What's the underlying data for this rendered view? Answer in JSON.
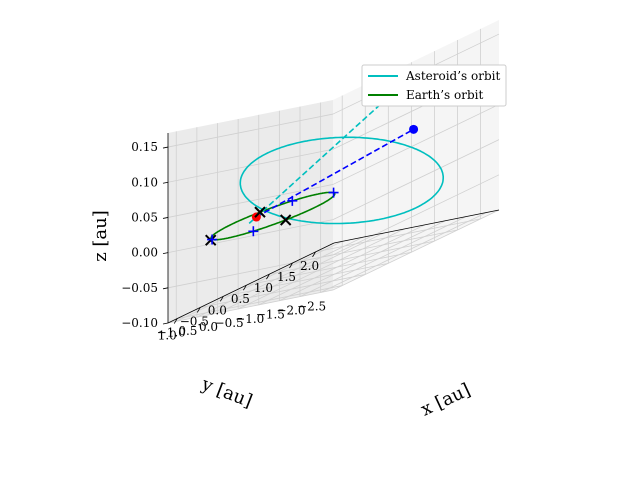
{
  "chart_data": {
    "type": "line",
    "projection": "3d",
    "title": "",
    "xlabel": "x [au]",
    "ylabel": "y [au]",
    "zlabel": "z [au]",
    "xlim": [
      -1.2,
      2.4
    ],
    "ylim": [
      -2.8,
      1.2
    ],
    "zlim": [
      -0.1,
      0.17
    ],
    "x_ticks": [
      "−1.0",
      "−0.5",
      "0.0",
      "0.5",
      "1.0",
      "1.5",
      "2.0"
    ],
    "x_tick_values": [
      -1.0,
      -0.5,
      0.0,
      0.5,
      1.0,
      1.5,
      2.0
    ],
    "y_ticks": [
      "1.0",
      "0.5",
      "0.0",
      "−0.5",
      "−1.0",
      "−1.5",
      "−2.0",
      "−2.5"
    ],
    "y_tick_values": [
      1.0,
      0.5,
      0.0,
      -0.5,
      -1.0,
      -1.5,
      -2.0,
      -2.5
    ],
    "z_ticks": [
      "0.15",
      "0.10",
      "0.05",
      "0.00",
      "−0.05",
      "−0.10"
    ],
    "z_tick_values": [
      0.15,
      0.1,
      0.05,
      0.0,
      -0.05,
      -0.1
    ],
    "grid": true,
    "legend_position": "top-right",
    "series": [
      {
        "name": "Asteroid’s orbit",
        "color": "#00bfbf",
        "style": "solid",
        "orbit": {
          "center": [
            0.6,
            -1.0,
            0.02
          ],
          "u": [
            1.5,
            0.0,
            0.0
          ],
          "v": [
            0.0,
            1.8,
            0.06
          ]
        }
      },
      {
        "name": "Earth’s orbit",
        "color": "#008000",
        "style": "solid",
        "orbit": {
          "center": [
            0.0,
            0.0,
            0.0
          ],
          "u": [
            1.0,
            0.0,
            0.0
          ],
          "v": [
            0.0,
            1.0,
            0.0
          ]
        }
      }
    ],
    "lines": [
      {
        "color": "#0000ff",
        "style": "dashed",
        "from": [
          0.18,
          0.6,
          0.0
        ],
        "to": [
          1.8,
          -1.4,
          0.05
        ]
      },
      {
        "color": "#00bfbf",
        "style": "dashed",
        "from": [
          -0.2,
          0.35,
          0.0
        ],
        "to": [
          2.1,
          -1.0,
          0.12
        ]
      }
    ],
    "markers": [
      {
        "symbol": "circle",
        "color": "#ff0000",
        "position": [
          0.18,
          0.6,
          0.0
        ]
      },
      {
        "symbol": "circle",
        "color": "#0000ff",
        "position": [
          1.8,
          -1.4,
          0.05
        ]
      },
      {
        "symbol": "x",
        "color": "#000000",
        "position": [
          -0.9,
          0.5,
          0.0
        ]
      },
      {
        "symbol": "x",
        "color": "#000000",
        "position": [
          0.5,
          0.87,
          0.0
        ]
      },
      {
        "symbol": "x",
        "color": "#000000",
        "position": [
          -0.5,
          -0.87,
          0.0
        ]
      },
      {
        "symbol": "x",
        "color": "#000000",
        "position": [
          2.1,
          -1.0,
          0.12
        ]
      },
      {
        "symbol": "x",
        "color": "#ff0000",
        "position": [
          2.1,
          -1.0,
          0.12
        ]
      },
      {
        "symbol": "plus",
        "color": "#0000ff",
        "position": [
          -0.87,
          0.5,
          0.0
        ]
      },
      {
        "symbol": "plus",
        "color": "#0000ff",
        "position": [
          -0.87,
          -0.5,
          0.0
        ]
      },
      {
        "symbol": "plus",
        "color": "#0000ff",
        "position": [
          0.87,
          0.5,
          0.0
        ]
      },
      {
        "symbol": "plus",
        "color": "#0000ff",
        "position": [
          0.87,
          -0.5,
          0.0
        ]
      }
    ]
  }
}
